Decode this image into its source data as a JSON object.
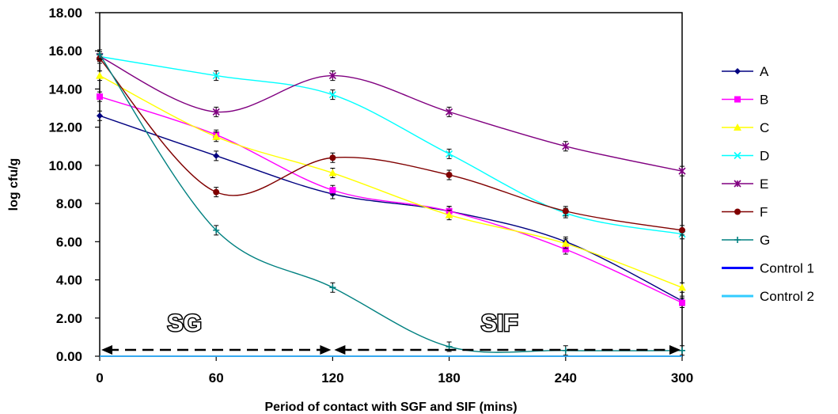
{
  "chart_data": {
    "type": "line",
    "xlabel": "Period of contact with SGF and SIF (mins)",
    "ylabel": "log cfu/g",
    "x": [
      0,
      60,
      120,
      180,
      240,
      300
    ],
    "x_ticks": [
      "0",
      "60",
      "120",
      "180",
      "240",
      "300"
    ],
    "y_ticks": [
      "0.00",
      "2.00",
      "4.00",
      "6.00",
      "8.00",
      "10.00",
      "12.00",
      "14.00",
      "16.00",
      "18.00"
    ],
    "xlim": [
      0,
      300
    ],
    "ylim": [
      0,
      18
    ],
    "grid": false,
    "legend_position": "right",
    "series": [
      {
        "name": "A",
        "color": "#000080",
        "marker": "diamond",
        "values": [
          12.6,
          10.5,
          8.5,
          7.6,
          6.0,
          2.9
        ]
      },
      {
        "name": "B",
        "color": "#ff00ff",
        "marker": "square",
        "values": [
          13.6,
          11.6,
          8.7,
          7.6,
          5.6,
          2.8
        ]
      },
      {
        "name": "C",
        "color": "#ffff00",
        "marker": "triangle",
        "values": [
          14.7,
          11.5,
          9.6,
          7.4,
          5.9,
          3.6
        ]
      },
      {
        "name": "D",
        "color": "#00ffff",
        "marker": "x",
        "values": [
          15.7,
          14.7,
          13.7,
          10.6,
          7.5,
          6.4
        ]
      },
      {
        "name": "E",
        "color": "#800080",
        "marker": "star",
        "values": [
          15.7,
          12.8,
          14.7,
          12.8,
          11.0,
          9.7
        ]
      },
      {
        "name": "F",
        "color": "#800000",
        "marker": "dot",
        "values": [
          15.6,
          8.6,
          10.4,
          9.5,
          7.6,
          6.6
        ]
      },
      {
        "name": "G",
        "color": "#008080",
        "marker": "plus",
        "values": [
          15.8,
          6.6,
          3.6,
          0.5,
          0.3,
          0.3
        ]
      },
      {
        "name": "Control 1",
        "color": "#0000ff",
        "marker": "dash",
        "values": [
          0,
          0,
          0,
          0,
          0,
          0
        ]
      },
      {
        "name": "Control 2",
        "color": "#33ccff",
        "marker": "dash",
        "values": [
          0,
          0,
          0,
          0,
          0,
          0
        ]
      }
    ],
    "annotations": [
      {
        "text": "SG",
        "x_range": [
          0,
          120
        ]
      },
      {
        "text": "SIF",
        "x_range": [
          120,
          300
        ]
      }
    ]
  }
}
